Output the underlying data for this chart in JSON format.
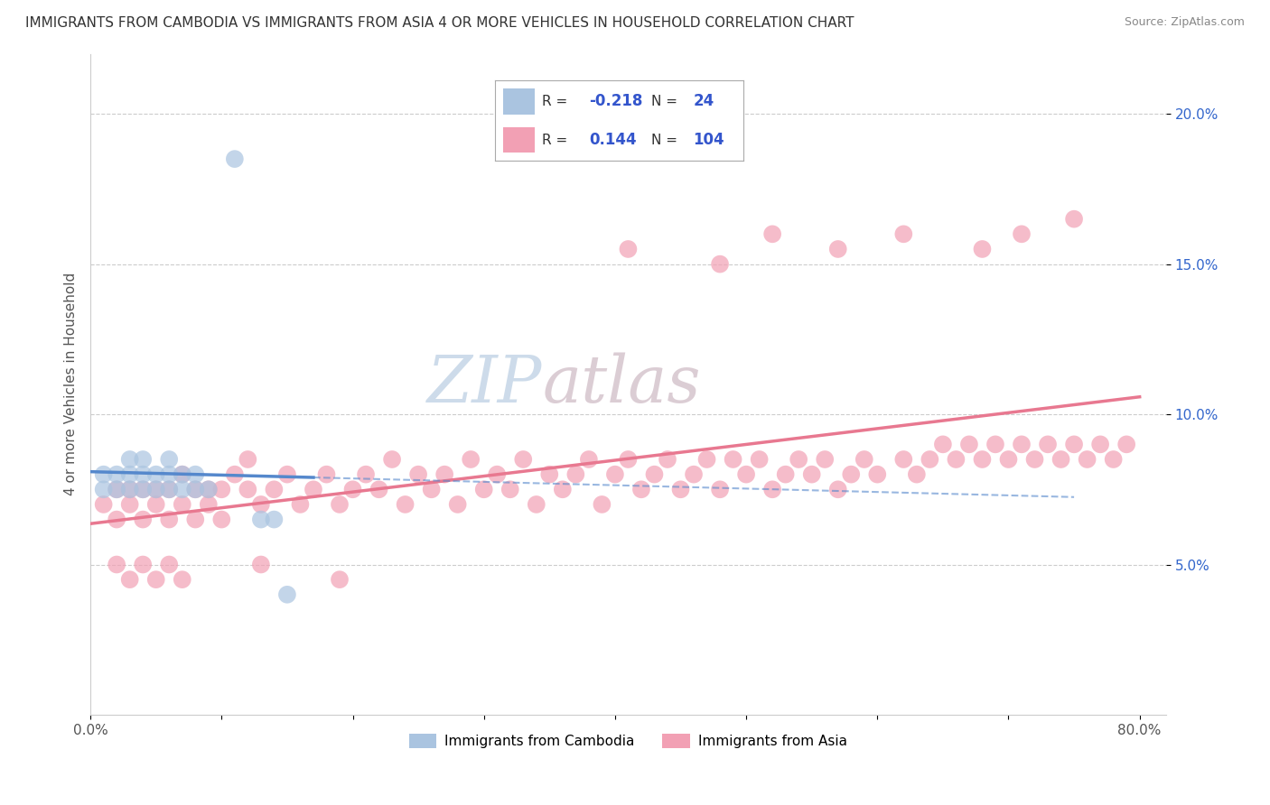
{
  "title": "IMMIGRANTS FROM CAMBODIA VS IMMIGRANTS FROM ASIA 4 OR MORE VEHICLES IN HOUSEHOLD CORRELATION CHART",
  "source": "Source: ZipAtlas.com",
  "ylabel": "4 or more Vehicles in Household",
  "legend_label1": "Immigrants from Cambodia",
  "legend_label2": "Immigrants from Asia",
  "r1": "-0.218",
  "n1": "24",
  "r2": "0.144",
  "n2": "104",
  "color_cambodia": "#aac4e0",
  "color_asia": "#f2a0b4",
  "color_cambodia_line": "#5588cc",
  "color_asia_line": "#e87890",
  "color_r_value": "#3355cc",
  "watermark_color": "#c8d8e8",
  "watermark_color2": "#d8c8d0",
  "xmin": 0.0,
  "xmax": 0.8,
  "ymin": 0.0,
  "ymax": 0.22,
  "cambodia_x": [
    0.01,
    0.01,
    0.02,
    0.02,
    0.03,
    0.03,
    0.03,
    0.04,
    0.04,
    0.04,
    0.05,
    0.05,
    0.06,
    0.06,
    0.06,
    0.07,
    0.07,
    0.08,
    0.08,
    0.09,
    0.11,
    0.13,
    0.14,
    0.15
  ],
  "cambodia_y": [
    0.075,
    0.08,
    0.075,
    0.08,
    0.075,
    0.08,
    0.085,
    0.075,
    0.08,
    0.085,
    0.075,
    0.08,
    0.075,
    0.08,
    0.085,
    0.075,
    0.08,
    0.075,
    0.08,
    0.075,
    0.185,
    0.065,
    0.065,
    0.04
  ],
  "asia_x": [
    0.01,
    0.02,
    0.02,
    0.03,
    0.03,
    0.04,
    0.04,
    0.05,
    0.05,
    0.06,
    0.06,
    0.07,
    0.07,
    0.08,
    0.08,
    0.09,
    0.09,
    0.1,
    0.1,
    0.11,
    0.12,
    0.12,
    0.13,
    0.14,
    0.15,
    0.16,
    0.17,
    0.18,
    0.19,
    0.2,
    0.21,
    0.22,
    0.23,
    0.24,
    0.25,
    0.26,
    0.27,
    0.28,
    0.29,
    0.3,
    0.31,
    0.32,
    0.33,
    0.34,
    0.35,
    0.36,
    0.37,
    0.38,
    0.39,
    0.4,
    0.41,
    0.42,
    0.43,
    0.44,
    0.45,
    0.46,
    0.47,
    0.48,
    0.49,
    0.5,
    0.51,
    0.52,
    0.53,
    0.54,
    0.55,
    0.56,
    0.57,
    0.58,
    0.59,
    0.6,
    0.62,
    0.63,
    0.64,
    0.65,
    0.66,
    0.67,
    0.68,
    0.69,
    0.7,
    0.71,
    0.72,
    0.73,
    0.74,
    0.75,
    0.76,
    0.77,
    0.78,
    0.79,
    0.41,
    0.48,
    0.52,
    0.57,
    0.62,
    0.68,
    0.71,
    0.75,
    0.02,
    0.03,
    0.04,
    0.05,
    0.06,
    0.07,
    0.13,
    0.19
  ],
  "asia_y": [
    0.07,
    0.065,
    0.075,
    0.07,
    0.075,
    0.065,
    0.075,
    0.07,
    0.075,
    0.065,
    0.075,
    0.07,
    0.08,
    0.065,
    0.075,
    0.07,
    0.075,
    0.065,
    0.075,
    0.08,
    0.075,
    0.085,
    0.07,
    0.075,
    0.08,
    0.07,
    0.075,
    0.08,
    0.07,
    0.075,
    0.08,
    0.075,
    0.085,
    0.07,
    0.08,
    0.075,
    0.08,
    0.07,
    0.085,
    0.075,
    0.08,
    0.075,
    0.085,
    0.07,
    0.08,
    0.075,
    0.08,
    0.085,
    0.07,
    0.08,
    0.085,
    0.075,
    0.08,
    0.085,
    0.075,
    0.08,
    0.085,
    0.075,
    0.085,
    0.08,
    0.085,
    0.075,
    0.08,
    0.085,
    0.08,
    0.085,
    0.075,
    0.08,
    0.085,
    0.08,
    0.085,
    0.08,
    0.085,
    0.09,
    0.085,
    0.09,
    0.085,
    0.09,
    0.085,
    0.09,
    0.085,
    0.09,
    0.085,
    0.09,
    0.085,
    0.09,
    0.085,
    0.09,
    0.155,
    0.15,
    0.16,
    0.155,
    0.16,
    0.155,
    0.16,
    0.165,
    0.05,
    0.045,
    0.05,
    0.045,
    0.05,
    0.045,
    0.05,
    0.045
  ]
}
